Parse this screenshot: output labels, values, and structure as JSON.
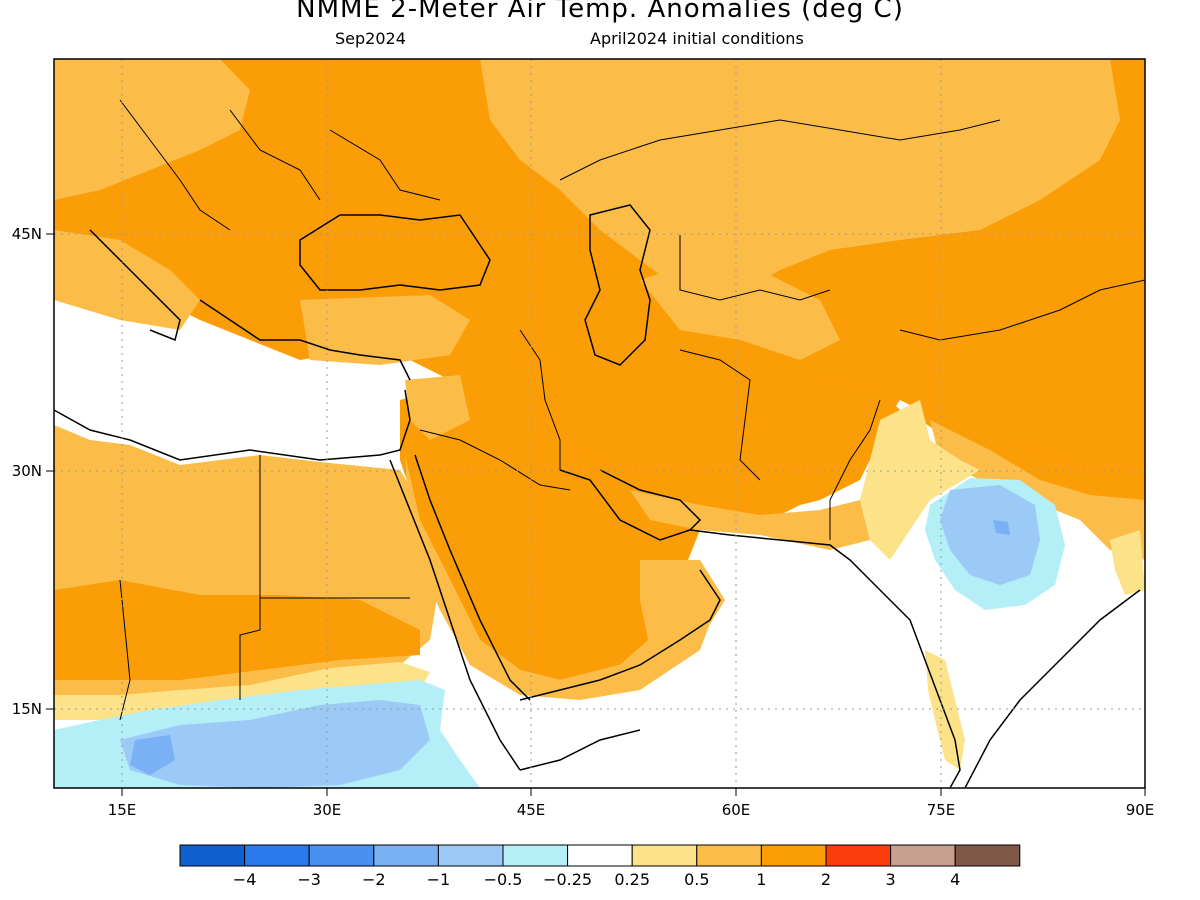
{
  "header": {
    "title": "NMME 2-Meter Air Temp. Anomalies (deg C)",
    "target_month": "Sep2024",
    "initial_conditions": "April2024 initial conditions"
  },
  "map": {
    "region": "Middle East / South Asia",
    "lon_range": [
      10,
      90
    ],
    "lat_range": [
      9.5,
      55
    ],
    "x_ticks": [
      "15E",
      "30E",
      "45E",
      "60E",
      "75E",
      "90E"
    ],
    "y_ticks": [
      "45N",
      "30N",
      "15N"
    ],
    "gridlines": "dotted"
  },
  "colorbar": {
    "labels": [
      "-4",
      "-3",
      "-2",
      "-1",
      "-0.5",
      "-0.25",
      "0.25",
      "0.5",
      "1",
      "2",
      "3",
      "4"
    ],
    "colors": [
      "#1060d0",
      "#2a78ec",
      "#4a90f0",
      "#7ab0f4",
      "#9ccaf6",
      "#b4eef6",
      "#ffffff",
      "#fce38a",
      "#fbbd48",
      "#fb9d06",
      "#fb3c0c",
      "#c8a090",
      "#805848"
    ]
  }
}
